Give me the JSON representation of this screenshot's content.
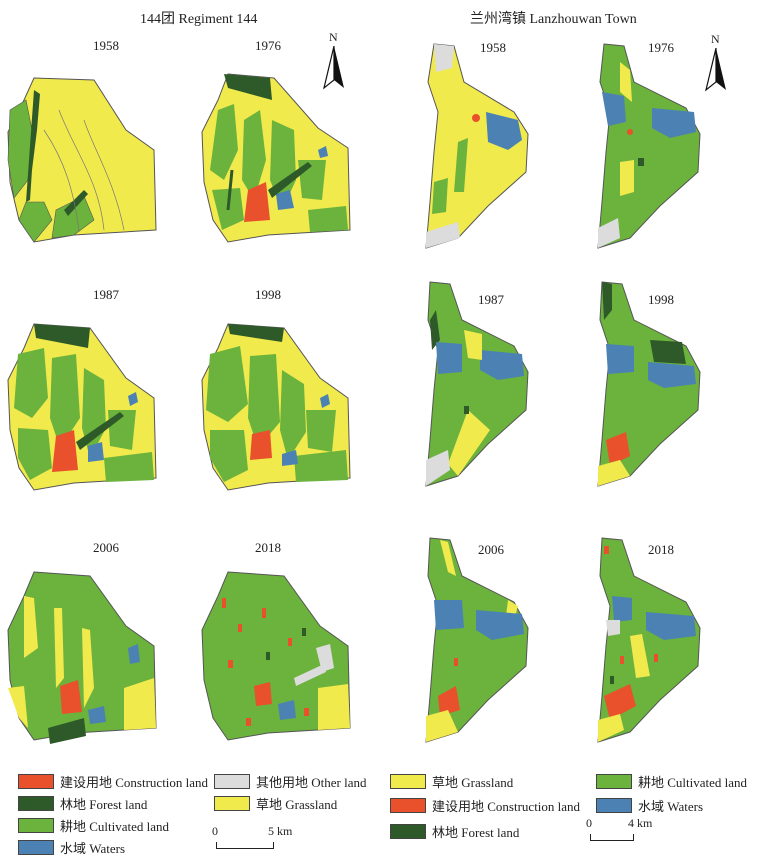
{
  "left_panel": {
    "title": "144团 Regiment 144",
    "years": [
      "1958",
      "1976",
      "1987",
      "1998",
      "2006",
      "2018"
    ],
    "north": "N",
    "scale": {
      "zero": "0",
      "end": "5 km"
    }
  },
  "right_panel": {
    "title": "兰州湾镇 Lanzhouwan Town",
    "years": [
      "1958",
      "1976",
      "1987",
      "1998",
      "2006",
      "2018"
    ],
    "north": "N",
    "scale": {
      "zero": "0",
      "end": "4 km"
    }
  },
  "legend_left": [
    {
      "label": "建设用地 Construction land",
      "color": "#e8512b"
    },
    {
      "label": "林地 Forest land",
      "color": "#2e5a2a"
    },
    {
      "label": "耕地 Cultivated land",
      "color": "#6bb33c"
    },
    {
      "label": "水域 Waters",
      "color": "#4b82b3"
    },
    {
      "label": "其他用地 Other land",
      "color": "#dcdcdc"
    },
    {
      "label": "草地 Grassland",
      "color": "#f1ea4c"
    }
  ],
  "legend_right": [
    {
      "label": "草地 Grassland",
      "color": "#f1ea4c"
    },
    {
      "label": "建设用地 Construction land",
      "color": "#e8512b"
    },
    {
      "label": "林地 Forest land",
      "color": "#2e5a2a"
    },
    {
      "label": "耕地 Cultivated land",
      "color": "#6bb33c"
    },
    {
      "label": "水域 Waters",
      "color": "#4b82b3"
    }
  ]
}
